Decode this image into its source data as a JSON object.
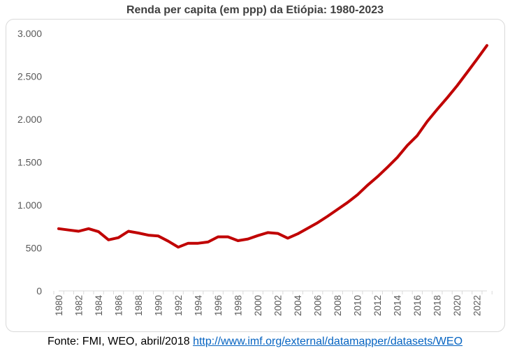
{
  "chart_data": {
    "type": "line",
    "title": "Renda per capita (em ppp) da Etiópia: 1980-2023",
    "xlabel": "",
    "ylabel": "",
    "ylim": [
      0,
      3000
    ],
    "yticks": [
      0,
      500,
      1000,
      1500,
      2000,
      2500,
      3000
    ],
    "ytick_labels": [
      "0",
      "500",
      "1.000",
      "1.500",
      "2.000",
      "2.500",
      "3.000"
    ],
    "xlim": [
      1980,
      2023
    ],
    "xtick_labels": [
      "1980",
      "1982",
      "1984",
      "1986",
      "1988",
      "1990",
      "1992",
      "1994",
      "1996",
      "1998",
      "2000",
      "2002",
      "2004",
      "2006",
      "2008",
      "2010",
      "2012",
      "2014",
      "2016",
      "2018",
      "2020",
      "2022"
    ],
    "grid": false,
    "legend": "none",
    "series": [
      {
        "color": "#c00000",
        "x": [
          1980,
          1981,
          1982,
          1983,
          1984,
          1985,
          1986,
          1987,
          1988,
          1989,
          1990,
          1991,
          1992,
          1993,
          1994,
          1995,
          1996,
          1997,
          1998,
          1999,
          2000,
          2001,
          2002,
          2003,
          2004,
          2005,
          2006,
          2007,
          2008,
          2009,
          2010,
          2011,
          2012,
          2013,
          2014,
          2015,
          2016,
          2017,
          2018,
          2019,
          2020,
          2021,
          2022,
          2023
        ],
        "y": [
          725,
          710,
          695,
          725,
          690,
          595,
          620,
          695,
          675,
          650,
          640,
          580,
          510,
          555,
          555,
          570,
          630,
          630,
          585,
          605,
          645,
          680,
          670,
          615,
          665,
          730,
          795,
          870,
          950,
          1030,
          1120,
          1230,
          1330,
          1440,
          1555,
          1695,
          1810,
          1975,
          2115,
          2250,
          2390,
          2545,
          2700,
          2860
        ]
      }
    ]
  },
  "source": {
    "text": "Fonte: FMI, WEO, abril/2018 ",
    "link": "http://www.imf.org/external/datamapper/datasets/WEO"
  }
}
